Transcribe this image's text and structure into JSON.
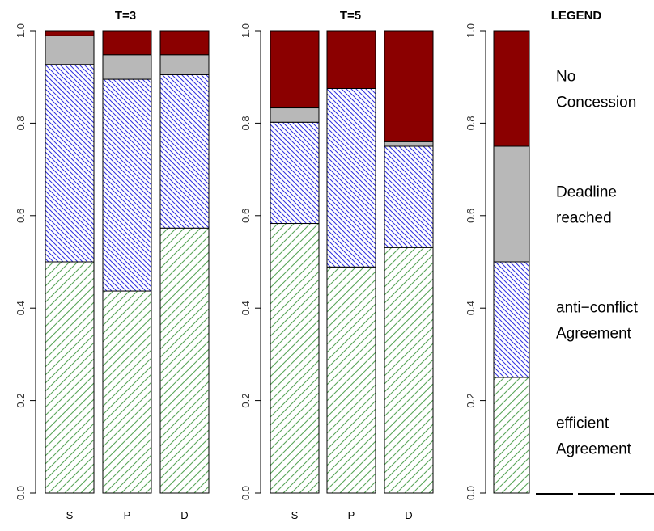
{
  "chart_data": [
    {
      "type": "bar",
      "stacked": true,
      "title": "T=3",
      "categories": [
        "S",
        "P",
        "D"
      ],
      "ylim": [
        0,
        1
      ],
      "yticks": [
        "0.0",
        "0.2",
        "0.4",
        "0.6",
        "0.8",
        "1.0"
      ],
      "series": [
        {
          "key": "efficient",
          "values": [
            0.5,
            0.437,
            0.573
          ]
        },
        {
          "key": "anticonflict",
          "values": [
            0.427,
            0.458,
            0.332
          ]
        },
        {
          "key": "deadline",
          "values": [
            0.062,
            0.053,
            0.043
          ]
        },
        {
          "key": "noconcession",
          "values": [
            0.011,
            0.052,
            0.052
          ]
        }
      ]
    },
    {
      "type": "bar",
      "stacked": true,
      "title": "T=5",
      "categories": [
        "S",
        "P",
        "D"
      ],
      "ylim": [
        0,
        1
      ],
      "yticks": [
        "0.0",
        "0.2",
        "0.4",
        "0.6",
        "0.8",
        "1.0"
      ],
      "series": [
        {
          "key": "efficient",
          "values": [
            0.583,
            0.489,
            0.531
          ]
        },
        {
          "key": "anticonflict",
          "values": [
            0.219,
            0.386,
            0.219
          ]
        },
        {
          "key": "deadline",
          "values": [
            0.031,
            0.0,
            0.01
          ]
        },
        {
          "key": "noconcession",
          "values": [
            0.167,
            0.125,
            0.24
          ]
        }
      ]
    },
    {
      "type": "bar",
      "stacked": true,
      "title": "LEGEND",
      "ylim": [
        0,
        1
      ],
      "yticks": [
        "0.0",
        "0.2",
        "0.4",
        "0.6",
        "0.8",
        "1.0"
      ],
      "series": [
        {
          "key": "efficient",
          "name": "efficient Agreement",
          "values": [
            0.25
          ]
        },
        {
          "key": "anticonflict",
          "name": "anti−conflict Agreement",
          "values": [
            0.25
          ]
        },
        {
          "key": "deadline",
          "name": "Deadline reached",
          "values": [
            0.25
          ]
        },
        {
          "key": "noconcession",
          "name": "No Concession",
          "values": [
            0.25
          ]
        }
      ]
    }
  ],
  "legend": {
    "entries": [
      {
        "key": "noconcession",
        "line1": "No",
        "line2": "Concession"
      },
      {
        "key": "deadline",
        "line1": "Deadline",
        "line2": "reached"
      },
      {
        "key": "anticonflict",
        "line1": "anti−conflict",
        "line2": "Agreement"
      },
      {
        "key": "efficient",
        "line1": "efficient",
        "line2": "Agreement"
      }
    ]
  },
  "colors": {
    "efficient": "#5aa65a",
    "anticonflict": "#3030e0",
    "deadline": "#b8b8b8",
    "noconcession": "#8b0000"
  }
}
